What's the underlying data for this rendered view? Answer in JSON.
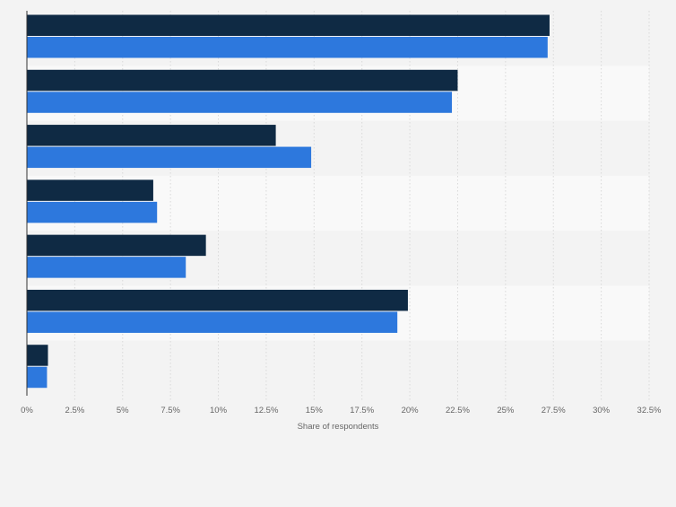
{
  "chart_data": {
    "type": "bar",
    "orientation": "horizontal",
    "categories": [
      "",
      "",
      "",
      "",
      "",
      "",
      ""
    ],
    "series": [
      {
        "color": "#0f2a44",
        "values": [
          27.3,
          22.5,
          13.0,
          6.6,
          9.35,
          19.9,
          1.1
        ]
      },
      {
        "color": "#2d78dd",
        "values": [
          27.2,
          22.2,
          14.85,
          6.8,
          8.3,
          19.35,
          1.05
        ]
      }
    ],
    "xlabel": "Share of respondents",
    "xlim": [
      0,
      32.5
    ],
    "x_ticks": [
      "0%",
      "2.5%",
      "5%",
      "7.5%",
      "10%",
      "12.5%",
      "15%",
      "17.5%",
      "20%",
      "22.5%",
      "25%",
      "27.5%",
      "30%",
      "32.5%"
    ],
    "grid": true,
    "legend": "none",
    "plot_background": "#f9f9f9",
    "band_colors": [
      "#f3f3f3",
      "#f9f9f9"
    ]
  }
}
